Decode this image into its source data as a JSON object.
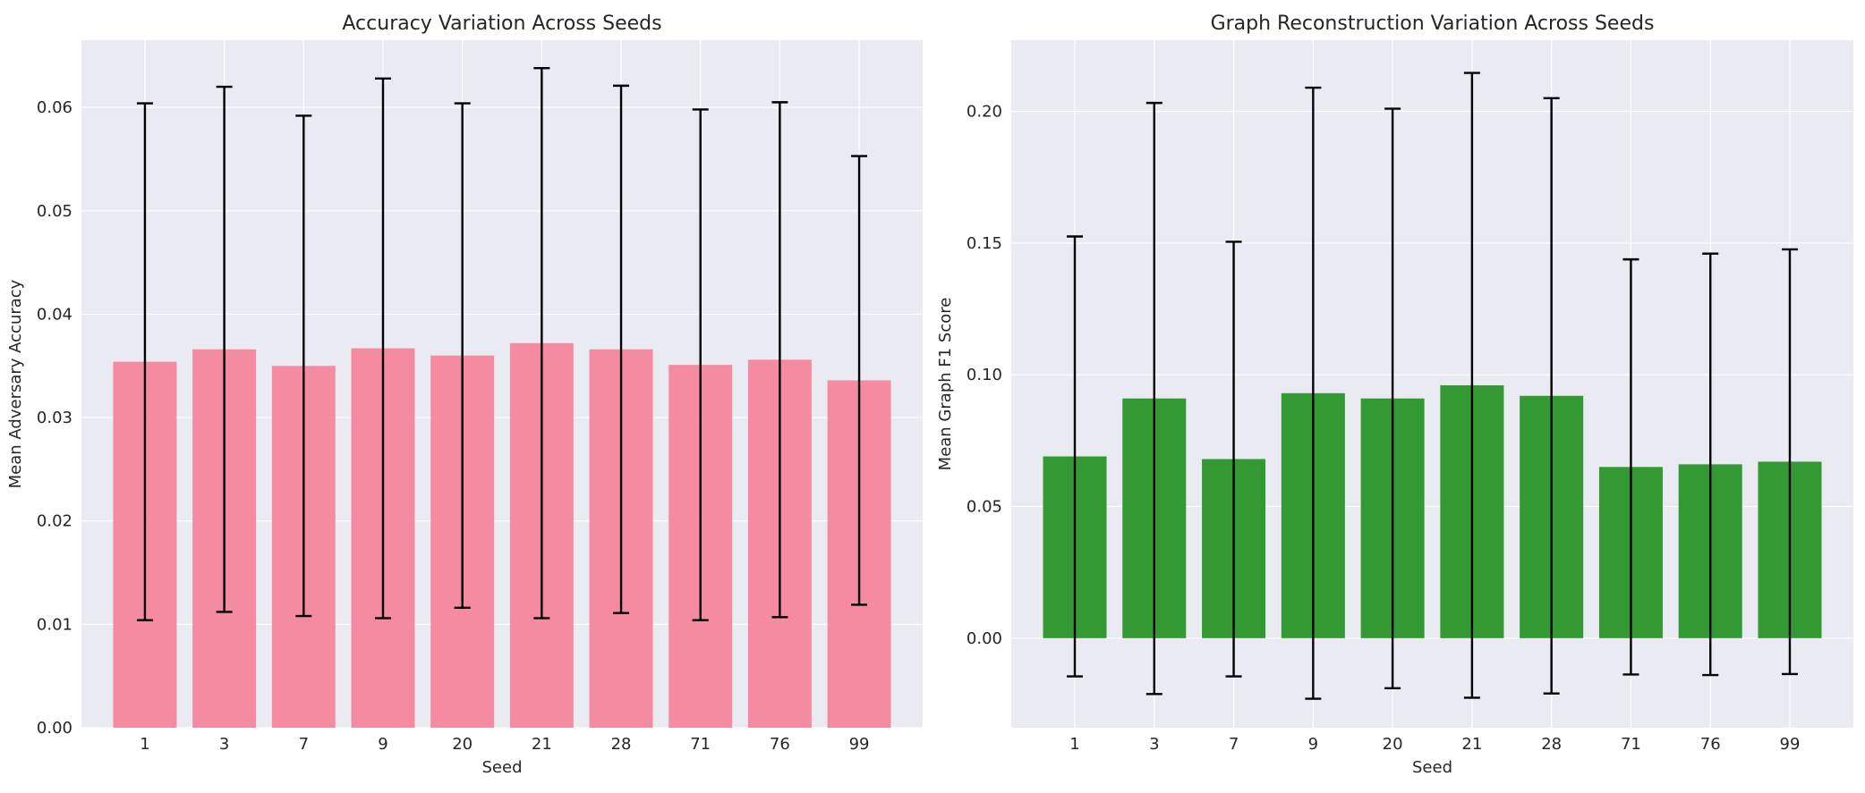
{
  "chart_data": [
    {
      "type": "bar",
      "title": "Accuracy Variation Across Seeds",
      "xlabel": "Seed",
      "ylabel": "Mean Adversary Accuracy",
      "categories": [
        "1",
        "3",
        "7",
        "9",
        "20",
        "21",
        "28",
        "71",
        "76",
        "99"
      ],
      "values": [
        0.0354,
        0.0366,
        0.035,
        0.0367,
        0.036,
        0.0372,
        0.0366,
        0.0351,
        0.0356,
        0.0336
      ],
      "errors": [
        0.025,
        0.0254,
        0.0242,
        0.0261,
        0.0244,
        0.0266,
        0.0255,
        0.0247,
        0.0249,
        0.0217
      ],
      "ylim": [
        0,
        0.0665
      ],
      "yticks": [
        0.0,
        0.01,
        0.02,
        0.03,
        0.04,
        0.05,
        0.06
      ],
      "ytick_labels": [
        "0.00",
        "0.01",
        "0.02",
        "0.03",
        "0.04",
        "0.05",
        "0.06"
      ],
      "color": "#f4869c",
      "error_color": "#000000",
      "grid": true
    },
    {
      "type": "bar",
      "title": "Graph Reconstruction Variation Across Seeds",
      "xlabel": "Seed",
      "ylabel": "Mean Graph F1 Score",
      "categories": [
        "1",
        "3",
        "7",
        "9",
        "20",
        "21",
        "28",
        "71",
        "76",
        "99"
      ],
      "values": [
        0.069,
        0.091,
        0.068,
        0.093,
        0.091,
        0.096,
        0.092,
        0.065,
        0.066,
        0.067
      ],
      "errors": [
        0.0835,
        0.1122,
        0.0825,
        0.116,
        0.11,
        0.1186,
        0.113,
        0.0788,
        0.08,
        0.0806
      ],
      "ylim": [
        -0.034,
        0.227
      ],
      "yticks": [
        0.0,
        0.05,
        0.1,
        0.15,
        0.2
      ],
      "ytick_labels": [
        "0.00",
        "0.05",
        "0.10",
        "0.15",
        "0.20"
      ],
      "color": "#339933",
      "error_color": "#000000",
      "grid": true
    }
  ],
  "colors": {
    "axes_background": "#eaeaf2",
    "grid": "#ffffff",
    "text": "#262626"
  }
}
